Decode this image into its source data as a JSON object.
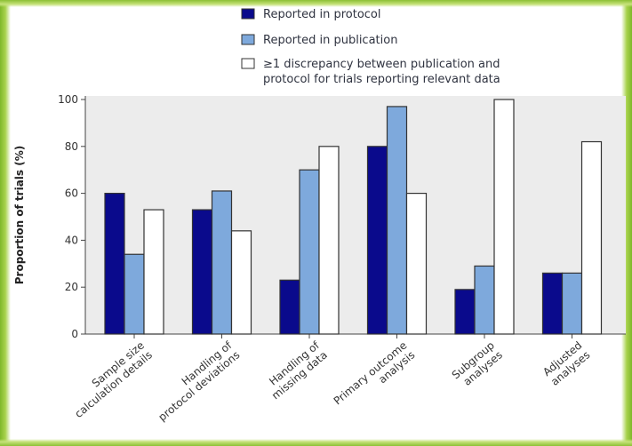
{
  "chart_data": {
    "type": "bar",
    "title": "",
    "xlabel": "",
    "ylabel": "Proportion of trials (%)",
    "ylim": [
      0,
      100
    ],
    "yticks": [
      0,
      20,
      40,
      60,
      80,
      100
    ],
    "grid": false,
    "legend_placement": "top",
    "categories": [
      [
        "Sample size",
        "calculation details"
      ],
      [
        "Handling of",
        "protocol deviations"
      ],
      [
        "Handling of",
        "missing data"
      ],
      [
        "Primary outcome",
        "analysis"
      ],
      [
        "Subgroup",
        "analyses"
      ],
      [
        "Adjusted",
        "analyses"
      ]
    ],
    "series": [
      {
        "name": "Reported in protocol",
        "color": "#0a0a8c",
        "values": [
          60,
          53,
          23,
          80,
          19,
          26
        ]
      },
      {
        "name": "Reported in publication",
        "color": "#7ea9dc",
        "values": [
          34,
          61,
          70,
          97,
          29,
          26
        ]
      },
      {
        "name": "≥1 discrepancy between publication and protocol for trials reporting relevant data",
        "color": "#ffffff",
        "values": [
          53,
          44,
          80,
          60,
          100,
          82
        ]
      }
    ],
    "legend": {
      "line1": "Reported in protocol",
      "line2": "Reported in publication",
      "line3a": "≥1 discrepancy between publication and",
      "line3b": "protocol for trials reporting relevant data"
    },
    "colors": {
      "plot_background": "#ececec",
      "frame": "#8fc23a"
    }
  }
}
